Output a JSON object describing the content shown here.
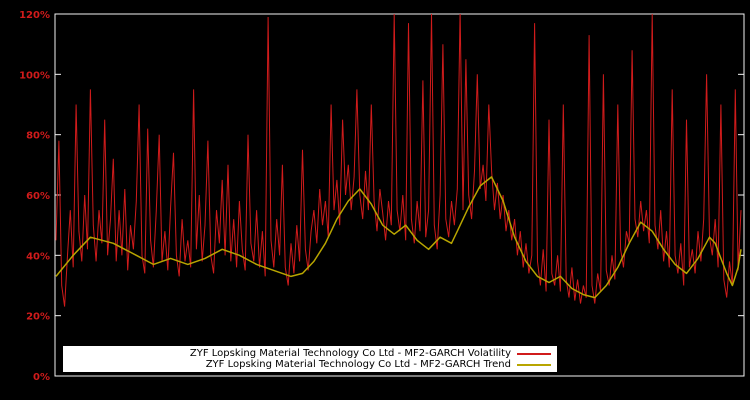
{
  "chart_data": {
    "type": "line",
    "title": "",
    "xlabel": "",
    "ylabel": "",
    "ylim": [
      0,
      120
    ],
    "grid": false,
    "background": "#000000",
    "frame_color": "#f2f2f2",
    "axis_label_color": "#d01b1b",
    "y_ticks": [
      {
        "value": 0,
        "label": "0%"
      },
      {
        "value": 20,
        "label": "20%"
      },
      {
        "value": 40,
        "label": "40%"
      },
      {
        "value": 60,
        "label": "60%"
      },
      {
        "value": 80,
        "label": "80%"
      },
      {
        "value": 100,
        "label": "100%"
      },
      {
        "value": 120,
        "label": "120%"
      }
    ],
    "x_ticks_visible": false,
    "legend": {
      "position": "bottom-left",
      "background": "#ffffff",
      "entries": [
        {
          "label": "ZYF Lopsking Material Technology Co Ltd - MF2-GARCH Volatility",
          "color": "#d01b1b"
        },
        {
          "label": "ZYF Lopsking Material Technology Co Ltd - MF2-GARCH Trend",
          "color": "#b8a500"
        }
      ]
    },
    "series": [
      {
        "name": "MF2-GARCH Volatility",
        "color": "#d01b1b",
        "width": 1,
        "values": [
          45,
          78,
          30,
          23,
          40,
          55,
          36,
          90,
          48,
          38,
          60,
          42,
          95,
          50,
          38,
          55,
          44,
          85,
          40,
          52,
          72,
          38,
          55,
          40,
          62,
          35,
          50,
          42,
          58,
          90,
          40,
          34,
          82,
          45,
          36,
          55,
          80,
          38,
          48,
          35,
          56,
          74,
          40,
          33,
          52,
          38,
          45,
          36,
          95,
          42,
          60,
          38,
          50,
          78,
          40,
          34,
          55,
          44,
          65,
          40,
          70,
          38,
          52,
          36,
          58,
          42,
          35,
          80,
          44,
          38,
          55,
          36,
          48,
          33,
          119,
          45,
          36,
          52,
          40,
          70,
          36,
          30,
          44,
          34,
          50,
          38,
          75,
          42,
          35,
          48,
          55,
          44,
          62,
          50,
          58,
          46,
          90,
          55,
          65,
          50,
          85,
          60,
          70,
          55,
          66,
          95,
          60,
          52,
          68,
          55,
          90,
          58,
          48,
          62,
          54,
          45,
          58,
          50,
          120,
          55,
          48,
          60,
          45,
          117,
          52,
          44,
          58,
          48,
          98,
          46,
          55,
          120,
          50,
          42,
          60,
          110,
          52,
          46,
          58,
          50,
          62,
          121,
          55,
          105,
          60,
          52,
          68,
          100,
          62,
          70,
          58,
          90,
          68,
          55,
          64,
          52,
          60,
          48,
          55,
          45,
          52,
          40,
          48,
          36,
          44,
          34,
          40,
          117,
          38,
          30,
          42,
          28,
          85,
          34,
          30,
          40,
          28,
          90,
          32,
          26,
          36,
          25,
          32,
          24,
          30,
          26,
          113,
          30,
          24,
          34,
          28,
          100,
          35,
          30,
          40,
          32,
          90,
          42,
          36,
          48,
          44,
          108,
          52,
          46,
          58,
          48,
          55,
          44,
          120,
          50,
          42,
          55,
          38,
          48,
          36,
          95,
          40,
          34,
          44,
          30,
          85,
          36,
          42,
          34,
          48,
          38,
          52,
          100,
          46,
          40,
          52,
          36,
          90,
          32,
          26,
          38,
          30,
          95,
          35,
          55
        ]
      },
      {
        "name": "MF2-GARCH Trend",
        "color": "#b8a500",
        "width": 1.5,
        "points": [
          [
            0,
            33
          ],
          [
            6,
            40
          ],
          [
            12,
            46
          ],
          [
            20,
            44
          ],
          [
            28,
            40
          ],
          [
            34,
            37
          ],
          [
            40,
            39
          ],
          [
            46,
            37
          ],
          [
            52,
            39
          ],
          [
            58,
            42
          ],
          [
            64,
            40
          ],
          [
            70,
            37
          ],
          [
            76,
            35
          ],
          [
            82,
            33
          ],
          [
            86,
            34
          ],
          [
            90,
            38
          ],
          [
            94,
            44
          ],
          [
            98,
            52
          ],
          [
            102,
            58
          ],
          [
            106,
            62
          ],
          [
            110,
            57
          ],
          [
            114,
            50
          ],
          [
            118,
            47
          ],
          [
            122,
            50
          ],
          [
            126,
            45
          ],
          [
            130,
            42
          ],
          [
            134,
            46
          ],
          [
            138,
            44
          ],
          [
            140,
            48
          ],
          [
            144,
            56
          ],
          [
            148,
            63
          ],
          [
            152,
            66
          ],
          [
            156,
            58
          ],
          [
            160,
            46
          ],
          [
            164,
            38
          ],
          [
            168,
            33
          ],
          [
            172,
            31
          ],
          [
            176,
            33
          ],
          [
            180,
            29
          ],
          [
            184,
            27
          ],
          [
            188,
            26
          ],
          [
            192,
            30
          ],
          [
            196,
            36
          ],
          [
            200,
            44
          ],
          [
            204,
            51
          ],
          [
            208,
            48
          ],
          [
            212,
            42
          ],
          [
            216,
            37
          ],
          [
            220,
            34
          ],
          [
            224,
            39
          ],
          [
            228,
            46
          ],
          [
            230,
            44
          ],
          [
            232,
            39
          ],
          [
            234,
            34
          ],
          [
            236,
            30
          ],
          [
            238,
            36
          ],
          [
            239,
            42
          ]
        ]
      }
    ]
  }
}
